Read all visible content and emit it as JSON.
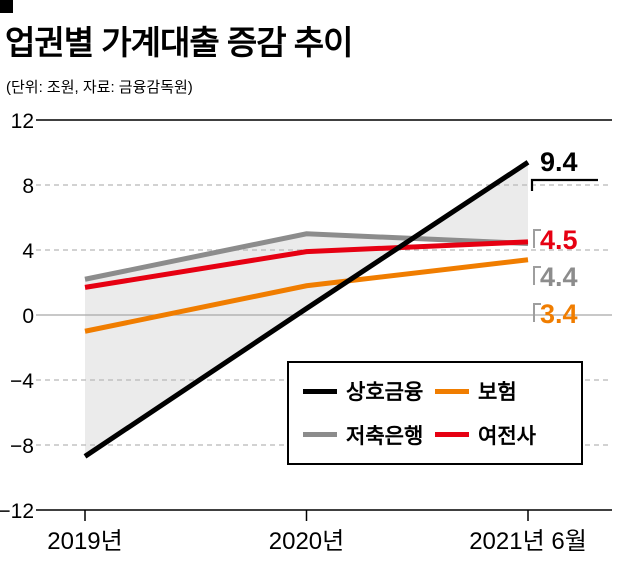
{
  "header": {
    "title": "업권별 가계대출 증감 추이",
    "subtitle": "(단위: 조원, 자료: 금융감독원)"
  },
  "chart_data": {
    "type": "line",
    "categories": [
      "2019년",
      "2020년",
      "2021년 6월"
    ],
    "series": [
      {
        "name": "상호금융",
        "color": "#000000",
        "values": [
          -8.7,
          0.4,
          9.4
        ],
        "end_label": "9.4"
      },
      {
        "name": "보험",
        "color": "#f07d00",
        "values": [
          -1.0,
          1.8,
          3.4
        ],
        "end_label": "3.4"
      },
      {
        "name": "저축은행",
        "color": "#8c8c8c",
        "values": [
          2.2,
          5.0,
          4.4
        ],
        "end_label": "4.4"
      },
      {
        "name": "여전사",
        "color": "#e60012",
        "values": [
          1.7,
          3.9,
          4.5
        ],
        "end_label": "4.5"
      }
    ],
    "ylim": [
      -12,
      12
    ],
    "yticks": [
      12,
      8,
      4,
      0,
      -4,
      -8,
      -12
    ],
    "fill_between": [
      "상호금융",
      "저축은행"
    ],
    "fill_color": "#ebebeb",
    "legend_order": [
      0,
      1,
      2,
      3
    ],
    "legend_position": "inside-bottom-right",
    "grid": "dashed-horizontal"
  }
}
